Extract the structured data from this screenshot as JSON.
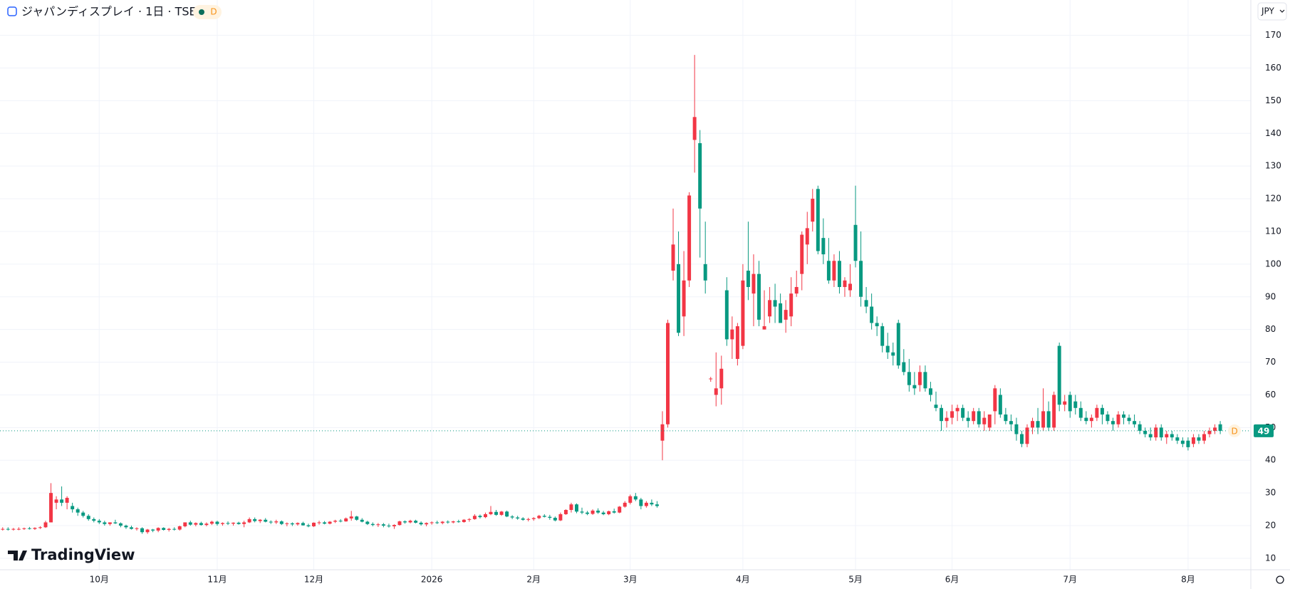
{
  "chart_data": {
    "type": "candlestick",
    "title": "ジャパンディスプレイ · 1日 · TSE",
    "interval_badge": "D",
    "currency": "JPY",
    "brand": "TradingView",
    "up_color": "#f23645",
    "down_color": "#089981",
    "grid": true,
    "xlim": [
      -0.5,
      232.7
    ],
    "xticks": [
      {
        "value": 18,
        "label": "10月"
      },
      {
        "value": 40,
        "label": "11月"
      },
      {
        "value": 58,
        "label": "12月"
      },
      {
        "value": 80,
        "label": "2026"
      },
      {
        "value": 99,
        "label": "2月"
      },
      {
        "value": 117,
        "label": "3月"
      },
      {
        "value": 138,
        "label": "4月"
      },
      {
        "value": 159,
        "label": "5月"
      },
      {
        "value": 177,
        "label": "6月"
      },
      {
        "value": 199,
        "label": "7月"
      },
      {
        "value": 221,
        "label": "8月"
      }
    ],
    "ylim": [
      6.5,
      180.8
    ],
    "yticks": [
      10,
      20,
      30,
      40,
      50,
      60,
      70,
      80,
      90,
      100,
      110,
      120,
      130,
      140,
      150,
      160,
      170
    ],
    "ohlc": [
      [
        19,
        19.5,
        18.5,
        19
      ],
      [
        19,
        19.5,
        18.5,
        18.8
      ],
      [
        18.8,
        19.3,
        18.5,
        19
      ],
      [
        19,
        19.5,
        18.6,
        19
      ],
      [
        19,
        19.4,
        18.7,
        19.2
      ],
      [
        19.2,
        19.6,
        18.8,
        19
      ],
      [
        19,
        19.5,
        18.7,
        19.3
      ],
      [
        19.3,
        19.8,
        19,
        19.5
      ],
      [
        19.5,
        21.5,
        19.3,
        21
      ],
      [
        21,
        33,
        21,
        30
      ],
      [
        27,
        29,
        25,
        28
      ],
      [
        28,
        32,
        26,
        27
      ],
      [
        27,
        29,
        25,
        28.5
      ],
      [
        26,
        27,
        24,
        25
      ],
      [
        25,
        25.5,
        23,
        24
      ],
      [
        24,
        24.5,
        22.5,
        23
      ],
      [
        23,
        23.5,
        21.5,
        22
      ],
      [
        22,
        22.5,
        21,
        21.5
      ],
      [
        21.5,
        22,
        20.5,
        21
      ],
      [
        21,
        21.5,
        20,
        20.5
      ],
      [
        20.5,
        21,
        20,
        21
      ],
      [
        21,
        21.8,
        20.5,
        20.7
      ],
      [
        20.7,
        21,
        19.5,
        20
      ],
      [
        20,
        20.3,
        19,
        19.5
      ],
      [
        19.5,
        20,
        18.8,
        19
      ],
      [
        19,
        19.5,
        18.5,
        19.2
      ],
      [
        19.2,
        19.5,
        17.5,
        18
      ],
      [
        18,
        19,
        17.5,
        18.8
      ],
      [
        18.8,
        19,
        18,
        18.5
      ],
      [
        18.5,
        19.5,
        18,
        19.3
      ],
      [
        19.3,
        19.5,
        18.5,
        18.7
      ],
      [
        18.7,
        19.3,
        18.2,
        19
      ],
      [
        19,
        19.5,
        18.5,
        18.8
      ],
      [
        18.8,
        20,
        18.5,
        19.8
      ],
      [
        19.8,
        21,
        19.5,
        21
      ],
      [
        21,
        21.5,
        20,
        20.3
      ],
      [
        20.3,
        21,
        19.8,
        20.8
      ],
      [
        20.8,
        21.2,
        20,
        20.2
      ],
      [
        20.2,
        21,
        19.8,
        20.6
      ],
      [
        20.6,
        21.5,
        20.2,
        21.2
      ],
      [
        21.2,
        21.5,
        20,
        20.5
      ],
      [
        20.5,
        21,
        20,
        20.8
      ],
      [
        20.8,
        21.3,
        20.2,
        20.6
      ],
      [
        20.6,
        21,
        20,
        20.9
      ],
      [
        20.9,
        21.2,
        20.3,
        20.5
      ],
      [
        20.5,
        21.5,
        19.5,
        21
      ],
      [
        21,
        22.5,
        20.8,
        22
      ],
      [
        22,
        22.5,
        21,
        21.4
      ],
      [
        21.4,
        22,
        20.8,
        21.8
      ],
      [
        21.8,
        22.3,
        21,
        21.2
      ],
      [
        21.2,
        21.6,
        20.5,
        21
      ],
      [
        21,
        21.8,
        20.5,
        21.3
      ],
      [
        21.3,
        21.6,
        20.2,
        20.5
      ],
      [
        20.5,
        21,
        19.8,
        20.7
      ],
      [
        20.7,
        21,
        19.9,
        20.4
      ],
      [
        20.4,
        21,
        20,
        20.8
      ],
      [
        20.8,
        21.2,
        20,
        20.1
      ],
      [
        20.1,
        20.6,
        19.5,
        19.8
      ],
      [
        19.8,
        21,
        19.6,
        20.9
      ],
      [
        20.9,
        21.5,
        20.3,
        21
      ],
      [
        21,
        21.4,
        20.4,
        20.6
      ],
      [
        20.6,
        21.4,
        20.4,
        21.2
      ],
      [
        21.2,
        21.8,
        20.8,
        21.5
      ],
      [
        21.5,
        22,
        21,
        21.3
      ],
      [
        21.3,
        22.5,
        21.2,
        22.2
      ],
      [
        22.2,
        24.5,
        21.5,
        22.8
      ],
      [
        22.8,
        23,
        21.5,
        21.8
      ],
      [
        21.8,
        22.3,
        21,
        21.2
      ],
      [
        21.2,
        21.5,
        20.2,
        20.5
      ],
      [
        20.5,
        21,
        19.8,
        20.2
      ],
      [
        20.2,
        20.8,
        19.6,
        20.4
      ],
      [
        20.4,
        20.8,
        19.5,
        20
      ],
      [
        20,
        20.6,
        19.4,
        19.8
      ],
      [
        19.8,
        20.4,
        19,
        20.2
      ],
      [
        20.2,
        21.5,
        20,
        21.3
      ],
      [
        21.3,
        21.6,
        20.6,
        21
      ],
      [
        21,
        21.8,
        20.7,
        21.5
      ],
      [
        21.5,
        21.8,
        20.7,
        20.9
      ],
      [
        20.9,
        21.3,
        20,
        20.4
      ],
      [
        20.4,
        21,
        19.8,
        20.8
      ],
      [
        20.8,
        21.3,
        20.3,
        21
      ],
      [
        21,
        21.5,
        20.5,
        20.8
      ],
      [
        20.8,
        21.4,
        20.4,
        21.2
      ],
      [
        21.2,
        21.6,
        20.6,
        21
      ],
      [
        21,
        21.5,
        20.7,
        21.3
      ],
      [
        21.3,
        21.8,
        20.9,
        21.1
      ],
      [
        21.1,
        22,
        20.9,
        21.8
      ],
      [
        21.8,
        22.3,
        21.2,
        22
      ],
      [
        22,
        23.5,
        21.8,
        23
      ],
      [
        23,
        23.4,
        22.2,
        22.6
      ],
      [
        22.6,
        24,
        22.3,
        23.5
      ],
      [
        23.5,
        26,
        23.2,
        24.2
      ],
      [
        24.2,
        24.8,
        23,
        23.3
      ],
      [
        23.3,
        24.5,
        23,
        24.3
      ],
      [
        24.3,
        24.6,
        22.6,
        22.8
      ],
      [
        22.8,
        23.2,
        22,
        22.5
      ],
      [
        22.5,
        23,
        21.8,
        22.2
      ],
      [
        22.2,
        22.6,
        21.5,
        21.8
      ],
      [
        21.8,
        22.4,
        21.3,
        22
      ],
      [
        22,
        22.6,
        21.5,
        22.3
      ],
      [
        22.3,
        23.3,
        22,
        23
      ],
      [
        23,
        23.5,
        22.5,
        22.7
      ],
      [
        22.7,
        23.3,
        21.8,
        22.4
      ],
      [
        22.4,
        22.8,
        21.3,
        21.6
      ],
      [
        21.6,
        24,
        21.4,
        23.5
      ],
      [
        23.5,
        25,
        23.3,
        24.8
      ],
      [
        24.8,
        27,
        24,
        26.5
      ],
      [
        26.5,
        26.8,
        23.8,
        24.3
      ],
      [
        24.3,
        25.5,
        23.5,
        24
      ],
      [
        24,
        24.5,
        23.2,
        23.6
      ],
      [
        23.6,
        25,
        23.3,
        24.6
      ],
      [
        24.6,
        25.3,
        23.6,
        24
      ],
      [
        24,
        24.5,
        23.2,
        23.5
      ],
      [
        23.5,
        24.6,
        23.2,
        24.4
      ],
      [
        24.4,
        25.2,
        23.7,
        24
      ],
      [
        24,
        26,
        23.8,
        25.8
      ],
      [
        25.8,
        27.5,
        25.5,
        27
      ],
      [
        27,
        29.5,
        26.5,
        29
      ],
      [
        29,
        30,
        27.5,
        28
      ],
      [
        28,
        28.5,
        25,
        26
      ],
      [
        26,
        27.5,
        25.5,
        27
      ],
      [
        27,
        28,
        26,
        26.5
      ],
      [
        26.5,
        27.5,
        25.5,
        26
      ],
      [
        46,
        55,
        40,
        51
      ],
      [
        51,
        83,
        50,
        82
      ],
      [
        98,
        117,
        95,
        106
      ],
      [
        100,
        110,
        78,
        79
      ],
      [
        84,
        104,
        78,
        95
      ],
      [
        95,
        122,
        93,
        121
      ],
      [
        138,
        164,
        128,
        145
      ],
      [
        137,
        141,
        102,
        117
      ],
      [
        100,
        113,
        91,
        95
      ],
      [
        65,
        65.5,
        64,
        65
      ],
      [
        60,
        73,
        56.5,
        62
      ],
      [
        62,
        72,
        57,
        68
      ],
      [
        92,
        96,
        75,
        77
      ],
      [
        77,
        84,
        71,
        80
      ],
      [
        71,
        82,
        69,
        81
      ],
      [
        75,
        100,
        74,
        95
      ],
      [
        98,
        113,
        89,
        93
      ],
      [
        91,
        103,
        81,
        97
      ],
      [
        97,
        101,
        81,
        83
      ],
      [
        80,
        92,
        80,
        81
      ],
      [
        84,
        93,
        82,
        89
      ],
      [
        89,
        94,
        82,
        87
      ],
      [
        88,
        91,
        83,
        82
      ],
      [
        83,
        89,
        79,
        86
      ],
      [
        84,
        96,
        81,
        91
      ],
      [
        91,
        98,
        90,
        93
      ],
      [
        97,
        110,
        92,
        109
      ],
      [
        106,
        116,
        100,
        111
      ],
      [
        113,
        123,
        110,
        120
      ],
      [
        123,
        124,
        103,
        104
      ],
      [
        108,
        114,
        100,
        103
      ],
      [
        101,
        108,
        94,
        95
      ],
      [
        95,
        103,
        93,
        101
      ],
      [
        101,
        104,
        91,
        93
      ],
      [
        93,
        96,
        90,
        95
      ],
      [
        92,
        100,
        90,
        94
      ],
      [
        112,
        124,
        99,
        101
      ],
      [
        101,
        110,
        87,
        90
      ],
      [
        89,
        93,
        85,
        87
      ],
      [
        87,
        91,
        80,
        82
      ],
      [
        82,
        84,
        78,
        81
      ],
      [
        81,
        82,
        73,
        75
      ],
      [
        75,
        79,
        71,
        73
      ],
      [
        73,
        76,
        69,
        72
      ],
      [
        82,
        83,
        68,
        69
      ],
      [
        70,
        74,
        66,
        67
      ],
      [
        67,
        71,
        61,
        63
      ],
      [
        63,
        67,
        60,
        62
      ],
      [
        63,
        69,
        61,
        67
      ],
      [
        67,
        69,
        61,
        62
      ],
      [
        62,
        64,
        58,
        60
      ],
      [
        57,
        61,
        55,
        56
      ],
      [
        56,
        57,
        49,
        52
      ],
      [
        52,
        55,
        50,
        53
      ],
      [
        53,
        57,
        51,
        55
      ],
      [
        55,
        57,
        52,
        56
      ],
      [
        56,
        57,
        52,
        53
      ],
      [
        53,
        55,
        50,
        52
      ],
      [
        52,
        56,
        51,
        55
      ],
      [
        55,
        56,
        50,
        51
      ],
      [
        51,
        55,
        49,
        53
      ],
      [
        50,
        54,
        49,
        54
      ],
      [
        55,
        63,
        51,
        62
      ],
      [
        60,
        62,
        53,
        54
      ],
      [
        54,
        56,
        51,
        52
      ],
      [
        52,
        54,
        49,
        51
      ],
      [
        51,
        53,
        46,
        48
      ],
      [
        48,
        49,
        44,
        45
      ],
      [
        45,
        51,
        44,
        50
      ],
      [
        50,
        53,
        48,
        52
      ],
      [
        52,
        56,
        48,
        50
      ],
      [
        50,
        62,
        49,
        55
      ],
      [
        55,
        58,
        49,
        50
      ],
      [
        50,
        61,
        49,
        60
      ],
      [
        75,
        76,
        55,
        57
      ],
      [
        57,
        60,
        55,
        58
      ],
      [
        60,
        61,
        53,
        55
      ],
      [
        58,
        60,
        54,
        56
      ],
      [
        56,
        58,
        52,
        53
      ],
      [
        53,
        55,
        51,
        52
      ],
      [
        52,
        54,
        50,
        53
      ],
      [
        53,
        57,
        52,
        56
      ],
      [
        56,
        57,
        51,
        54
      ],
      [
        54,
        55,
        51,
        52
      ],
      [
        52,
        53,
        49,
        51
      ],
      [
        51,
        55,
        50,
        54
      ],
      [
        54,
        55,
        51,
        53
      ],
      [
        53,
        54,
        51,
        52
      ],
      [
        52,
        54,
        50,
        51
      ],
      [
        51,
        52,
        48,
        49
      ],
      [
        49,
        50,
        47,
        48
      ],
      [
        48,
        50,
        46,
        47
      ],
      [
        47,
        51,
        46,
        50
      ],
      [
        50,
        51,
        46,
        47
      ],
      [
        47,
        49,
        45,
        48
      ],
      [
        48,
        49,
        46,
        47
      ],
      [
        47,
        48,
        45,
        46
      ],
      [
        46,
        47,
        44,
        45
      ],
      [
        46,
        47,
        43,
        44
      ],
      [
        45,
        48,
        44,
        47
      ],
      [
        47,
        48,
        45,
        46
      ],
      [
        46,
        49,
        45,
        48
      ],
      [
        48,
        50,
        47,
        49
      ],
      [
        49,
        51,
        48,
        50
      ],
      [
        51,
        52,
        48,
        49
      ]
    ]
  }
}
